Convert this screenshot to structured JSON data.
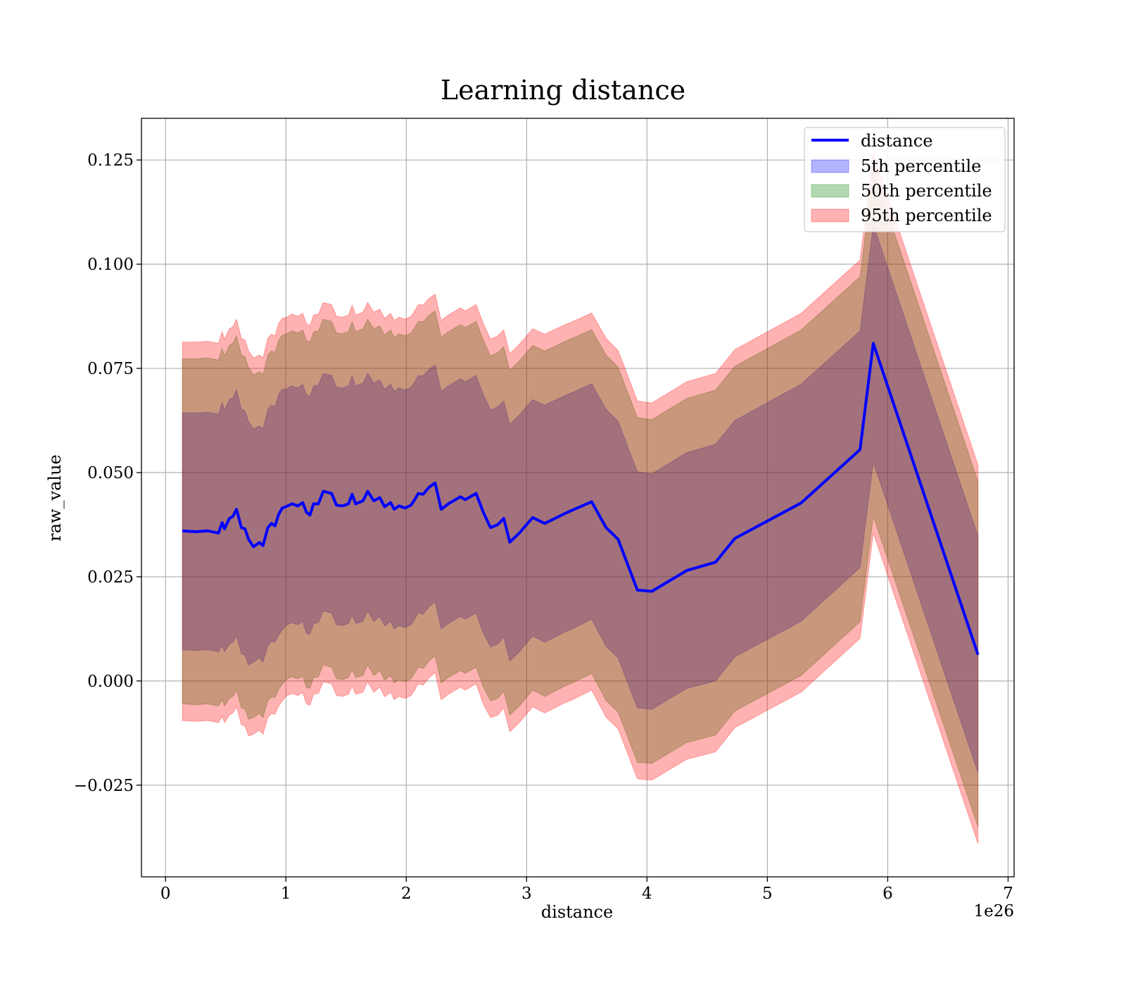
{
  "chart_data": {
    "type": "area",
    "title": "Learning distance",
    "xlabel": "distance",
    "ylabel": "raw_value",
    "x_offset_text": "1e26",
    "xlim": [
      -0.2,
      7.05
    ],
    "ylim": [
      -0.047,
      0.135
    ],
    "xticks": [
      0,
      1,
      2,
      3,
      4,
      5,
      6,
      7
    ],
    "xtick_labels": [
      "0",
      "1",
      "2",
      "3",
      "4",
      "5",
      "6",
      "7"
    ],
    "yticks": [
      -0.025,
      0.0,
      0.025,
      0.05,
      0.075,
      0.1,
      0.125
    ],
    "ytick_labels": [
      "−0.025",
      "0.000",
      "0.025",
      "0.050",
      "0.075",
      "0.100",
      "0.125"
    ],
    "grid": true,
    "legend_position": "top-right",
    "x": [
      0.14,
      0.25,
      0.35,
      0.44,
      0.47,
      0.49,
      0.53,
      0.56,
      0.59,
      0.63,
      0.66,
      0.69,
      0.73,
      0.78,
      0.81,
      0.85,
      0.88,
      0.91,
      0.94,
      0.97,
      1.0,
      1.05,
      1.1,
      1.14,
      1.17,
      1.2,
      1.23,
      1.27,
      1.31,
      1.38,
      1.42,
      1.47,
      1.52,
      1.55,
      1.58,
      1.64,
      1.68,
      1.73,
      1.78,
      1.82,
      1.87,
      1.9,
      1.94,
      1.99,
      2.04,
      2.07,
      2.1,
      2.14,
      2.19,
      2.24,
      2.29,
      2.35,
      2.45,
      2.49,
      2.58,
      2.64,
      2.7,
      2.76,
      2.81,
      2.86,
      2.94,
      3.05,
      3.15,
      3.32,
      3.38,
      3.54,
      3.66,
      3.76,
      3.92,
      4.04,
      4.33,
      4.57,
      4.73,
      5.28,
      5.77,
      5.88,
      6.75
    ],
    "series": [
      {
        "name": "distance",
        "role": "line",
        "color": "#0000ff",
        "values": [
          0.036,
          0.0358,
          0.036,
          0.0355,
          0.038,
          0.0365,
          0.039,
          0.0395,
          0.0412,
          0.0368,
          0.0365,
          0.034,
          0.0322,
          0.0332,
          0.0325,
          0.0368,
          0.0378,
          0.0372,
          0.04,
          0.0415,
          0.0418,
          0.0425,
          0.042,
          0.0428,
          0.0405,
          0.0398,
          0.0425,
          0.0425,
          0.0455,
          0.045,
          0.0422,
          0.042,
          0.0425,
          0.0448,
          0.0425,
          0.0432,
          0.0455,
          0.0432,
          0.044,
          0.0418,
          0.0428,
          0.0412,
          0.042,
          0.0415,
          0.0422,
          0.0435,
          0.045,
          0.0448,
          0.0465,
          0.0475,
          0.0412,
          0.0425,
          0.0442,
          0.0435,
          0.045,
          0.0405,
          0.0368,
          0.0375,
          0.039,
          0.0333,
          0.0355,
          0.0392,
          0.0378,
          0.0402,
          0.041,
          0.043,
          0.0368,
          0.034,
          0.0218,
          0.0215,
          0.0265,
          0.0285,
          0.0342,
          0.0427,
          0.0555,
          0.081,
          0.0063
        ]
      },
      {
        "name": "5th percentile",
        "role": "band",
        "color": "#0000ff",
        "lower": [
          0.0075,
          0.0073,
          0.0075,
          0.007,
          0.0085,
          0.007,
          0.0088,
          0.0093,
          0.0108,
          0.0065,
          0.0062,
          0.0038,
          0.0045,
          0.0055,
          0.0045,
          0.0085,
          0.0095,
          0.0093,
          0.011,
          0.0122,
          0.0133,
          0.014,
          0.0135,
          0.0142,
          0.0115,
          0.0112,
          0.0138,
          0.014,
          0.0168,
          0.0163,
          0.0135,
          0.0133,
          0.0138,
          0.0158,
          0.0138,
          0.0143,
          0.0168,
          0.0143,
          0.0155,
          0.0132,
          0.0143,
          0.0125,
          0.0133,
          0.0128,
          0.0135,
          0.0148,
          0.0163,
          0.016,
          0.0178,
          0.019,
          0.0125,
          0.0138,
          0.0155,
          0.0148,
          0.0163,
          0.0115,
          0.0082,
          0.0088,
          0.0105,
          0.0048,
          0.007,
          0.0108,
          0.0093,
          0.0118,
          0.0125,
          0.0148,
          0.0083,
          0.0055,
          -0.0065,
          -0.0068,
          -0.0018,
          0.0,
          0.0058,
          0.0143,
          0.0272,
          0.0525,
          -0.022
        ],
        "upper": [
          0.0643,
          0.0643,
          0.0645,
          0.064,
          0.0668,
          0.065,
          0.0675,
          0.068,
          0.0698,
          0.0652,
          0.0648,
          0.0622,
          0.0605,
          0.0612,
          0.0605,
          0.0652,
          0.0662,
          0.0658,
          0.0688,
          0.07,
          0.07,
          0.0708,
          0.0703,
          0.0712,
          0.0688,
          0.0682,
          0.0708,
          0.071,
          0.0738,
          0.0733,
          0.0705,
          0.0703,
          0.0708,
          0.0732,
          0.0708,
          0.0715,
          0.0738,
          0.0715,
          0.0722,
          0.07,
          0.0712,
          0.0695,
          0.0703,
          0.0698,
          0.0705,
          0.0718,
          0.0733,
          0.0732,
          0.0748,
          0.0758,
          0.0695,
          0.0708,
          0.0725,
          0.0718,
          0.0733,
          0.0688,
          0.065,
          0.0658,
          0.0672,
          0.0615,
          0.0638,
          0.0675,
          0.0662,
          0.0685,
          0.0692,
          0.0713,
          0.0652,
          0.0623,
          0.0502,
          0.0497,
          0.0548,
          0.0568,
          0.0625,
          0.0712,
          0.084,
          0.1095,
          0.0348
        ]
      },
      {
        "name": "50th percentile",
        "role": "band",
        "color": "#008000",
        "lower": [
          -0.0055,
          -0.0057,
          -0.0055,
          -0.006,
          -0.0045,
          -0.006,
          -0.0042,
          -0.0037,
          -0.0022,
          -0.0065,
          -0.0068,
          -0.0092,
          -0.0088,
          -0.0078,
          -0.0088,
          -0.0048,
          -0.0038,
          -0.004,
          -0.002,
          -0.0008,
          0.0003,
          0.001,
          0.0005,
          0.0012,
          -0.0015,
          -0.0018,
          0.0008,
          0.001,
          0.0038,
          0.0033,
          0.0005,
          0.0003,
          0.0008,
          0.0028,
          0.0008,
          0.0013,
          0.0038,
          0.0013,
          0.0025,
          0.0002,
          0.0013,
          -0.0005,
          0.0003,
          -0.0002,
          0.0005,
          0.0018,
          0.0033,
          0.003,
          0.0048,
          0.006,
          -0.0005,
          0.0008,
          0.0025,
          0.0018,
          0.0033,
          -0.0015,
          -0.0048,
          -0.0042,
          -0.0025,
          -0.0082,
          -0.006,
          -0.0022,
          -0.0037,
          -0.0012,
          -0.0005,
          0.0018,
          -0.0047,
          -0.0075,
          -0.0195,
          -0.0198,
          -0.0148,
          -0.013,
          -0.0072,
          0.0013,
          0.0142,
          0.0395,
          -0.035
        ],
        "upper": [
          0.0773,
          0.0773,
          0.0775,
          0.077,
          0.0798,
          0.078,
          0.0805,
          0.081,
          0.0828,
          0.0782,
          0.0778,
          0.0752,
          0.0735,
          0.0742,
          0.0735,
          0.0782,
          0.0792,
          0.0788,
          0.0818,
          0.083,
          0.0832,
          0.084,
          0.0835,
          0.0842,
          0.0818,
          0.0812,
          0.0838,
          0.084,
          0.0868,
          0.0863,
          0.0835,
          0.0833,
          0.0838,
          0.0862,
          0.0838,
          0.0845,
          0.0868,
          0.0845,
          0.0852,
          0.083,
          0.0842,
          0.0825,
          0.0833,
          0.0828,
          0.0835,
          0.0848,
          0.0863,
          0.0862,
          0.0878,
          0.0888,
          0.0825,
          0.0838,
          0.0855,
          0.0848,
          0.0863,
          0.0818,
          0.078,
          0.0788,
          0.0802,
          0.0745,
          0.0768,
          0.0805,
          0.0792,
          0.0815,
          0.0822,
          0.0843,
          0.0782,
          0.0753,
          0.0632,
          0.0627,
          0.0678,
          0.0698,
          0.0755,
          0.0842,
          0.097,
          0.1225,
          0.0478
        ]
      },
      {
        "name": "95th percentile",
        "role": "band",
        "color": "#ff0000",
        "lower": [
          -0.0095,
          -0.0097,
          -0.0095,
          -0.01,
          -0.0085,
          -0.01,
          -0.0082,
          -0.0077,
          -0.0062,
          -0.0105,
          -0.0108,
          -0.0132,
          -0.0128,
          -0.0118,
          -0.0128,
          -0.0088,
          -0.0078,
          -0.008,
          -0.006,
          -0.0048,
          -0.0037,
          -0.003,
          -0.0035,
          -0.0028,
          -0.0055,
          -0.0058,
          -0.0032,
          -0.003,
          -0.0002,
          -0.0007,
          -0.0035,
          -0.0037,
          -0.0032,
          -0.0012,
          -0.0032,
          -0.0027,
          -0.0002,
          -0.0027,
          -0.0015,
          -0.0038,
          -0.0027,
          -0.0045,
          -0.0037,
          -0.0042,
          -0.0035,
          -0.0022,
          -0.0007,
          -0.001,
          0.0008,
          0.002,
          -0.0045,
          -0.0032,
          -0.0015,
          -0.0022,
          -0.0007,
          -0.0055,
          -0.0088,
          -0.0082,
          -0.0065,
          -0.0122,
          -0.01,
          -0.0062,
          -0.0077,
          -0.0052,
          -0.0045,
          -0.0022,
          -0.0087,
          -0.0115,
          -0.0235,
          -0.0238,
          -0.0188,
          -0.017,
          -0.0112,
          -0.0027,
          0.0102,
          0.0355,
          -0.039
        ],
        "upper": [
          0.0813,
          0.0813,
          0.0815,
          0.081,
          0.0838,
          0.082,
          0.0845,
          0.085,
          0.0868,
          0.0822,
          0.0818,
          0.0792,
          0.0775,
          0.0782,
          0.0775,
          0.0822,
          0.0832,
          0.0828,
          0.0858,
          0.087,
          0.0872,
          0.088,
          0.0875,
          0.0882,
          0.0858,
          0.0852,
          0.0878,
          0.088,
          0.0908,
          0.0903,
          0.0875,
          0.0873,
          0.0878,
          0.0902,
          0.0878,
          0.0885,
          0.0908,
          0.0885,
          0.0892,
          0.087,
          0.0882,
          0.0865,
          0.0873,
          0.0868,
          0.0875,
          0.0888,
          0.0903,
          0.0902,
          0.0918,
          0.0928,
          0.0865,
          0.0878,
          0.0895,
          0.0888,
          0.0903,
          0.0858,
          0.082,
          0.0828,
          0.0842,
          0.0785,
          0.0808,
          0.0845,
          0.0832,
          0.0855,
          0.0862,
          0.0883,
          0.0822,
          0.0793,
          0.0672,
          0.0667,
          0.0718,
          0.0738,
          0.0795,
          0.0882,
          0.101,
          0.1265,
          0.0518
        ]
      }
    ]
  }
}
